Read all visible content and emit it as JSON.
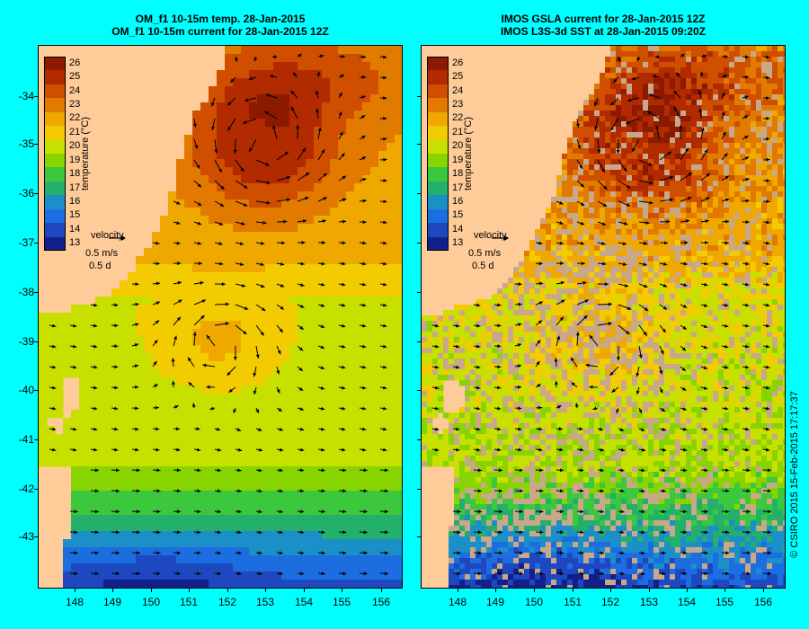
{
  "left_panel": {
    "title_line1": "OM_f1 10-15m temp. 28-Jan-2015",
    "title_line2": "OM_f1 10-15m current for 28-Jan-2015 12Z"
  },
  "right_panel": {
    "title_line1": "IMOS GSLA current for 28-Jan-2015 12Z",
    "title_line2": "IMOS L3S-3d SST at 28-Jan-2015 09:20Z"
  },
  "colorbar": {
    "title": "temperature (°C)",
    "levels": [
      "26",
      "25",
      "24",
      "23",
      "22",
      "21",
      "20",
      "19",
      "18",
      "17",
      "16",
      "15",
      "14",
      "13"
    ],
    "colors": [
      "#8b1a00",
      "#b22a00",
      "#d04e00",
      "#e27a00",
      "#eea800",
      "#f2cc00",
      "#c8e000",
      "#88d400",
      "#3cc83c",
      "#22b06a",
      "#1b8fc8",
      "#1c6ee0",
      "#1d48c0",
      "#14208a"
    ]
  },
  "velocity_legend": {
    "label": "velocity",
    "scale": "0.5 m/s",
    "period": "0.5 d"
  },
  "axes": {
    "y_ticks": [
      "-34",
      "-35",
      "-36",
      "-37",
      "-38",
      "-39",
      "-40",
      "-41",
      "-42",
      "-43"
    ],
    "x_ticks": [
      "148",
      "149",
      "150",
      "151",
      "152",
      "153",
      "154",
      "155",
      "156"
    ]
  },
  "copyright": "© CSIRO 2015   15-Feb-2015 17:17:37",
  "colors": {
    "background": "#00ffff",
    "land": "#ffcc99",
    "missing_data": "#c8a888"
  }
}
